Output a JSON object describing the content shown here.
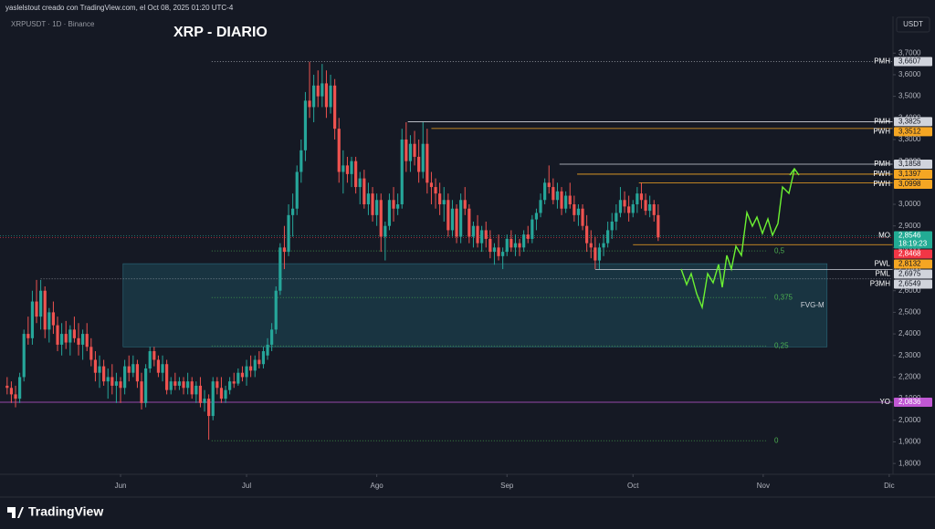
{
  "header": {
    "creator": "yaslelstout creado con TradingView.com, el Oct 08, 2025 01:20 UTC-4",
    "brand": "TradingView"
  },
  "chart_data": {
    "type": "candlestick",
    "title": "XRP - DIARIO",
    "symbol": "XRPUSDT · 1D · Binance",
    "currency": "USDT",
    "up_color": "#26a69a",
    "down_color": "#ef5350",
    "ylim": [
      1.75,
      3.87
    ],
    "xlim": [
      -1.7,
      210.9
    ],
    "yticks": [
      {
        "value": 1.8,
        "label": "1,8000"
      },
      {
        "value": 1.9,
        "label": "1,9000"
      },
      {
        "value": 2.0,
        "label": "2,0000"
      },
      {
        "value": 2.1,
        "label": "2,1000"
      },
      {
        "value": 2.2,
        "label": "2,2000"
      },
      {
        "value": 2.3,
        "label": "2,3000"
      },
      {
        "value": 2.4,
        "label": "2,4000"
      },
      {
        "value": 2.5,
        "label": "2,5000"
      },
      {
        "value": 2.6,
        "label": "2,6000"
      },
      {
        "value": 2.7,
        "label": "2,7000"
      },
      {
        "value": 2.8,
        "label": "2,8000"
      },
      {
        "value": 2.9,
        "label": "2,9000"
      },
      {
        "value": 3.0,
        "label": "3,0000"
      },
      {
        "value": 3.1,
        "label": "3,1000"
      },
      {
        "value": 3.2,
        "label": "3,2000"
      },
      {
        "value": 3.3,
        "label": "3,3000"
      },
      {
        "value": 3.4,
        "label": "3,4000"
      },
      {
        "value": 3.5,
        "label": "3,5000"
      },
      {
        "value": 3.6,
        "label": "3,6000"
      },
      {
        "value": 3.7,
        "label": "3,7000"
      }
    ],
    "xticks": [
      {
        "value": 27,
        "label": "Jun"
      },
      {
        "value": 57,
        "label": "Jul"
      },
      {
        "value": 88,
        "label": "Ago"
      },
      {
        "value": 119,
        "label": "Sep"
      },
      {
        "value": 149,
        "label": "Oct"
      },
      {
        "value": 180,
        "label": "Nov"
      },
      {
        "value": 210,
        "label": "Dic"
      }
    ],
    "candles": [
      [
        2.16,
        2.2,
        2.12,
        2.15
      ],
      [
        2.15,
        2.18,
        2.08,
        2.12
      ],
      [
        2.12,
        2.16,
        2.06,
        2.1
      ],
      [
        2.1,
        2.22,
        2.08,
        2.2
      ],
      [
        2.2,
        2.42,
        2.18,
        2.4
      ],
      [
        2.4,
        2.48,
        2.35,
        2.38
      ],
      [
        2.38,
        2.6,
        2.35,
        2.55
      ],
      [
        2.55,
        2.65,
        2.45,
        2.48
      ],
      [
        2.48,
        2.65,
        2.42,
        2.6
      ],
      [
        2.6,
        2.62,
        2.38,
        2.42
      ],
      [
        2.42,
        2.52,
        2.36,
        2.5
      ],
      [
        2.5,
        2.55,
        2.4,
        2.44
      ],
      [
        2.44,
        2.48,
        2.32,
        2.35
      ],
      [
        2.35,
        2.45,
        2.3,
        2.4
      ],
      [
        2.4,
        2.46,
        2.33,
        2.36
      ],
      [
        2.36,
        2.44,
        2.3,
        2.42
      ],
      [
        2.42,
        2.48,
        2.36,
        2.38
      ],
      [
        2.38,
        2.45,
        2.3,
        2.35
      ],
      [
        2.35,
        2.42,
        2.28,
        2.4
      ],
      [
        2.4,
        2.45,
        2.32,
        2.34
      ],
      [
        2.34,
        2.38,
        2.25,
        2.28
      ],
      [
        2.28,
        2.32,
        2.18,
        2.22
      ],
      [
        2.22,
        2.3,
        2.15,
        2.25
      ],
      [
        2.25,
        2.28,
        2.16,
        2.18
      ],
      [
        2.18,
        2.24,
        2.1,
        2.2
      ],
      [
        2.2,
        2.26,
        2.12,
        2.16
      ],
      [
        2.16,
        2.22,
        2.08,
        2.18
      ],
      [
        2.18,
        2.2,
        2.08,
        2.15
      ],
      [
        2.15,
        2.28,
        2.12,
        2.25
      ],
      [
        2.25,
        2.3,
        2.18,
        2.22
      ],
      [
        2.22,
        2.3,
        2.2,
        2.26
      ],
      [
        2.26,
        2.28,
        2.15,
        2.18
      ],
      [
        2.18,
        2.22,
        2.05,
        2.08
      ],
      [
        2.08,
        2.26,
        2.06,
        2.24
      ],
      [
        2.24,
        2.34,
        2.22,
        2.32
      ],
      [
        2.32,
        2.34,
        2.25,
        2.28
      ],
      [
        2.28,
        2.3,
        2.2,
        2.22
      ],
      [
        2.22,
        2.3,
        2.18,
        2.26
      ],
      [
        2.26,
        2.28,
        2.12,
        2.14
      ],
      [
        2.14,
        2.2,
        2.12,
        2.18
      ],
      [
        2.18,
        2.22,
        2.14,
        2.16
      ],
      [
        2.16,
        2.2,
        2.14,
        2.18
      ],
      [
        2.18,
        2.2,
        2.12,
        2.15
      ],
      [
        2.15,
        2.22,
        2.12,
        2.18
      ],
      [
        2.18,
        2.2,
        2.1,
        2.12
      ],
      [
        2.12,
        2.18,
        2.08,
        2.16
      ],
      [
        2.16,
        2.2,
        2.06,
        2.08
      ],
      [
        2.08,
        2.14,
        2.04,
        2.1
      ],
      [
        2.1,
        2.12,
        1.91,
        2.02
      ],
      [
        2.02,
        2.2,
        2.0,
        2.18
      ],
      [
        2.18,
        2.2,
        2.12,
        2.15
      ],
      [
        2.15,
        2.2,
        2.08,
        2.1
      ],
      [
        2.1,
        2.16,
        2.08,
        2.14
      ],
      [
        2.14,
        2.2,
        2.12,
        2.18
      ],
      [
        2.18,
        2.22,
        2.15,
        2.17
      ],
      [
        2.17,
        2.24,
        2.16,
        2.22
      ],
      [
        2.22,
        2.25,
        2.18,
        2.2
      ],
      [
        2.2,
        2.28,
        2.16,
        2.25
      ],
      [
        2.25,
        2.3,
        2.2,
        2.23
      ],
      [
        2.23,
        2.3,
        2.2,
        2.28
      ],
      [
        2.28,
        2.32,
        2.24,
        2.26
      ],
      [
        2.26,
        2.34,
        2.24,
        2.32
      ],
      [
        2.3,
        2.38,
        2.28,
        2.35
      ],
      [
        2.35,
        2.45,
        2.32,
        2.42
      ],
      [
        2.42,
        2.62,
        2.4,
        2.6
      ],
      [
        2.6,
        2.82,
        2.58,
        2.8
      ],
      [
        2.8,
        2.9,
        2.7,
        2.78
      ],
      [
        2.78,
        3.0,
        2.76,
        2.95
      ],
      [
        2.95,
        3.05,
        2.85,
        2.98
      ],
      [
        2.98,
        3.18,
        2.95,
        3.15
      ],
      [
        3.15,
        3.3,
        3.1,
        3.25
      ],
      [
        3.25,
        3.52,
        3.2,
        3.48
      ],
      [
        3.48,
        3.66,
        3.4,
        3.45
      ],
      [
        3.45,
        3.6,
        3.38,
        3.55
      ],
      [
        3.55,
        3.62,
        3.45,
        3.5
      ],
      [
        3.5,
        3.65,
        3.45,
        3.56
      ],
      [
        3.56,
        3.62,
        3.4,
        3.45
      ],
      [
        3.45,
        3.6,
        3.42,
        3.55
      ],
      [
        3.55,
        3.58,
        3.3,
        3.35
      ],
      [
        3.35,
        3.4,
        3.1,
        3.15
      ],
      [
        3.15,
        3.25,
        3.05,
        3.18
      ],
      [
        3.18,
        3.22,
        3.1,
        3.14
      ],
      [
        3.14,
        3.22,
        3.08,
        3.2
      ],
      [
        3.2,
        3.22,
        3.05,
        3.08
      ],
      [
        3.08,
        3.15,
        3.0,
        3.12
      ],
      [
        3.12,
        3.16,
        2.98,
        3.0
      ],
      [
        3.0,
        3.1,
        2.95,
        3.05
      ],
      [
        3.05,
        3.08,
        2.92,
        2.95
      ],
      [
        2.95,
        3.05,
        2.9,
        3.02
      ],
      [
        3.02,
        3.05,
        2.78,
        2.85
      ],
      [
        2.85,
        2.92,
        2.74,
        2.9
      ],
      [
        2.9,
        3.05,
        2.88,
        3.02
      ],
      [
        3.02,
        3.08,
        2.92,
        2.98
      ],
      [
        2.98,
        3.05,
        2.95,
        3.0
      ],
      [
        3.0,
        3.35,
        2.98,
        3.3
      ],
      [
        3.3,
        3.38,
        3.15,
        3.2
      ],
      [
        3.2,
        3.32,
        3.15,
        3.28
      ],
      [
        3.28,
        3.34,
        3.18,
        3.22
      ],
      [
        3.22,
        3.3,
        3.1,
        3.15
      ],
      [
        3.15,
        3.38,
        3.12,
        3.28
      ],
      [
        3.28,
        3.35,
        3.05,
        3.1
      ],
      [
        3.1,
        3.15,
        3.0,
        3.08
      ],
      [
        3.08,
        3.12,
        2.98,
        3.05
      ],
      [
        3.05,
        3.1,
        2.95,
        3.0
      ],
      [
        3.0,
        3.08,
        2.92,
        3.02
      ],
      [
        3.02,
        3.05,
        2.85,
        2.88
      ],
      [
        2.88,
        3.02,
        2.85,
        2.98
      ],
      [
        2.98,
        3.0,
        2.82,
        2.85
      ],
      [
        2.85,
        3.05,
        2.82,
        3.02
      ],
      [
        3.02,
        3.08,
        2.95,
        2.98
      ],
      [
        2.98,
        3.0,
        2.82,
        2.85
      ],
      [
        2.85,
        2.92,
        2.8,
        2.9
      ],
      [
        2.9,
        2.95,
        2.8,
        2.82
      ],
      [
        2.82,
        2.9,
        2.78,
        2.88
      ],
      [
        2.88,
        2.92,
        2.8,
        2.84
      ],
      [
        2.84,
        2.88,
        2.75,
        2.78
      ],
      [
        2.78,
        2.82,
        2.72,
        2.8
      ],
      [
        2.8,
        2.86,
        2.74,
        2.76
      ],
      [
        2.76,
        2.8,
        2.7,
        2.78
      ],
      [
        2.78,
        2.86,
        2.76,
        2.84
      ],
      [
        2.84,
        2.88,
        2.78,
        2.8
      ],
      [
        2.8,
        2.86,
        2.76,
        2.82
      ],
      [
        2.82,
        2.84,
        2.76,
        2.8
      ],
      [
        2.8,
        2.88,
        2.78,
        2.86
      ],
      [
        2.86,
        2.9,
        2.82,
        2.84
      ],
      [
        2.84,
        2.95,
        2.82,
        2.93
      ],
      [
        2.93,
        2.98,
        2.88,
        2.96
      ],
      [
        2.96,
        3.05,
        2.94,
        3.02
      ],
      [
        3.02,
        3.12,
        3.0,
        3.1
      ],
      [
        3.1,
        3.18,
        3.05,
        3.08
      ],
      [
        3.08,
        3.12,
        3.0,
        3.02
      ],
      [
        3.02,
        3.1,
        2.98,
        3.06
      ],
      [
        3.06,
        3.08,
        2.95,
        2.98
      ],
      [
        2.98,
        3.06,
        2.96,
        3.04
      ],
      [
        3.04,
        3.1,
        2.98,
        3.0
      ],
      [
        3.0,
        3.04,
        2.92,
        2.95
      ],
      [
        2.95,
        3.0,
        2.9,
        2.98
      ],
      [
        2.98,
        3.0,
        2.88,
        2.9
      ],
      [
        2.9,
        2.95,
        2.78,
        2.82
      ],
      [
        2.82,
        2.88,
        2.75,
        2.8
      ],
      [
        2.8,
        2.85,
        2.7,
        2.74
      ],
      [
        2.74,
        2.82,
        2.7,
        2.8
      ],
      [
        2.8,
        2.86,
        2.76,
        2.82
      ],
      [
        2.82,
        2.92,
        2.8,
        2.88
      ],
      [
        2.88,
        2.96,
        2.84,
        2.92
      ],
      [
        2.92,
        3.0,
        2.88,
        2.96
      ],
      [
        2.96,
        3.08,
        2.94,
        3.02
      ],
      [
        3.02,
        3.06,
        2.96,
        2.99
      ],
      [
        2.99,
        3.04,
        2.92,
        2.96
      ],
      [
        2.96,
        3.02,
        2.94,
        3.0
      ],
      [
        3.0,
        3.08,
        2.96,
        3.05
      ],
      [
        3.05,
        3.1,
        2.98,
        3.02
      ],
      [
        3.02,
        3.05,
        2.95,
        2.97
      ],
      [
        2.97,
        3.04,
        2.94,
        3.0
      ],
      [
        3.0,
        3.02,
        2.92,
        2.95
      ],
      [
        2.95,
        3.0,
        2.83,
        2.8468
      ]
    ],
    "levels": [
      {
        "name": "PMH",
        "value": 3.6607,
        "label": "3,6607",
        "color": "#d1d4dc",
        "x0": 48.7,
        "dashed": true
      },
      {
        "name": "PMH",
        "value": 3.3825,
        "label": "3,3825",
        "color": "#d1d4dc",
        "x0": 95.4
      },
      {
        "name": "PWH",
        "value": 3.3512,
        "label": "3,3512",
        "color": "#f5a623",
        "x0": 101
      },
      {
        "name": "PMH",
        "value": 3.1858,
        "label": "3,1858",
        "color": "#d1d4dc",
        "x0": 131.5
      },
      {
        "name": "PWH",
        "value": 3.1397,
        "label": "3,1397",
        "color": "#f5a623",
        "x0": 135.7
      },
      {
        "name": "PWH",
        "value": 3.0998,
        "label": "3,0998",
        "color": "#f5a623",
        "x0": 150.4
      },
      {
        "name": "MO",
        "value": 2.8546,
        "label": "2,8546",
        "color": "#22ab94",
        "x0": -1.7,
        "dashed": true,
        "countdown": "18:19:23"
      },
      {
        "name": "PWL",
        "value": 2.8132,
        "label": "2,8132",
        "color": "#f5a623",
        "x0": 149
      },
      {
        "name": "PML",
        "value": 2.6975,
        "label": "2,6975",
        "color": "#d1d4dc",
        "x0": 140
      },
      {
        "name": "P3MH",
        "value": 2.6549,
        "label": "2,6549",
        "color": "#d1d4dc",
        "x0": 8,
        "dashed": true
      },
      {
        "name": "YO",
        "value": 2.0836,
        "label": "2,0836",
        "color": "#c158d4",
        "x0": -1.7
      }
    ],
    "last_price": {
      "value": 2.8468,
      "label": "2,8468",
      "color": "#f23645"
    },
    "fib_levels": [
      {
        "value": 2.784,
        "label": "0,5"
      },
      {
        "value": 2.568,
        "label": "0,375"
      },
      {
        "value": 2.344,
        "label": "0,25"
      },
      {
        "value": 1.905,
        "label": "0"
      }
    ],
    "fib_x": [
      48.7,
      180.9
    ],
    "zone": {
      "label": "FVG-M",
      "top": 2.725,
      "bottom": 2.34,
      "x0": 27.6,
      "x1": 195.2
    }
  }
}
